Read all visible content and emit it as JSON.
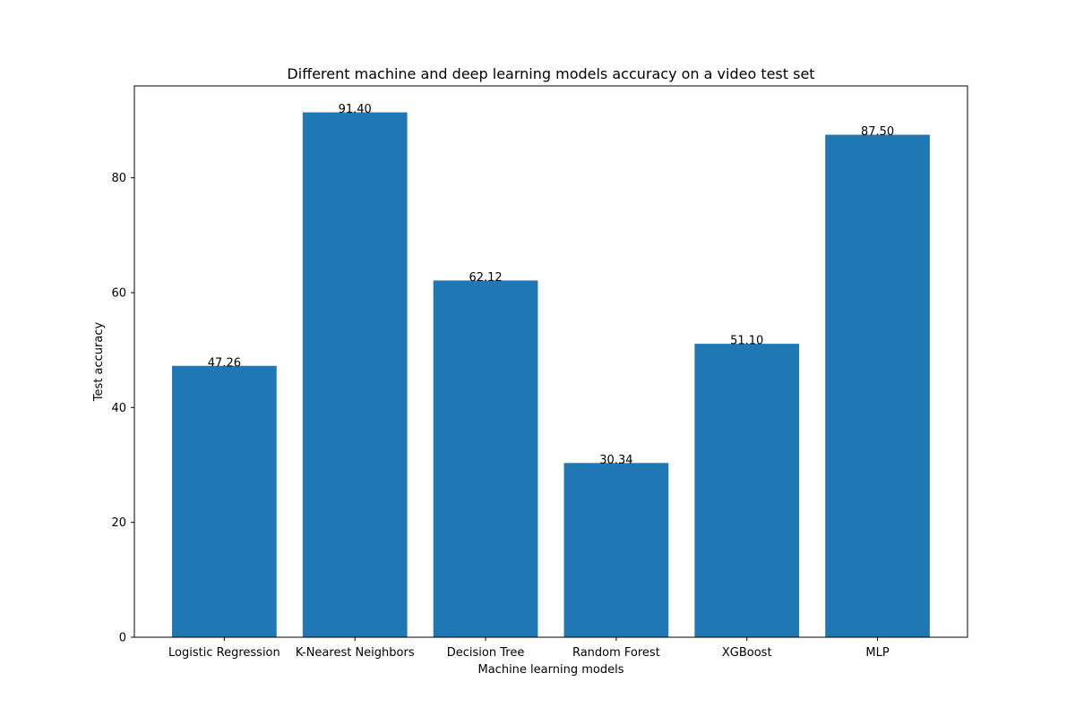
{
  "chart_data": {
    "type": "bar",
    "title": "Different machine and deep learning models accuracy on a video test set",
    "xlabel": "Machine learning models",
    "ylabel": "Test accuracy",
    "categories": [
      "Logistic Regression",
      "K-Nearest Neighbors",
      "Decision Tree",
      "Random Forest",
      "XGBoost",
      "MLP"
    ],
    "values": [
      47.26,
      91.4,
      62.12,
      30.34,
      51.1,
      87.5
    ],
    "data_labels": [
      "47.26",
      "91.40",
      "62.12",
      "30.34",
      "51.10",
      "87.50"
    ],
    "ylim": [
      0,
      96
    ],
    "yticks": [
      0,
      20,
      40,
      60,
      80
    ],
    "grid": false,
    "bar_color": "#1f77b4"
  }
}
